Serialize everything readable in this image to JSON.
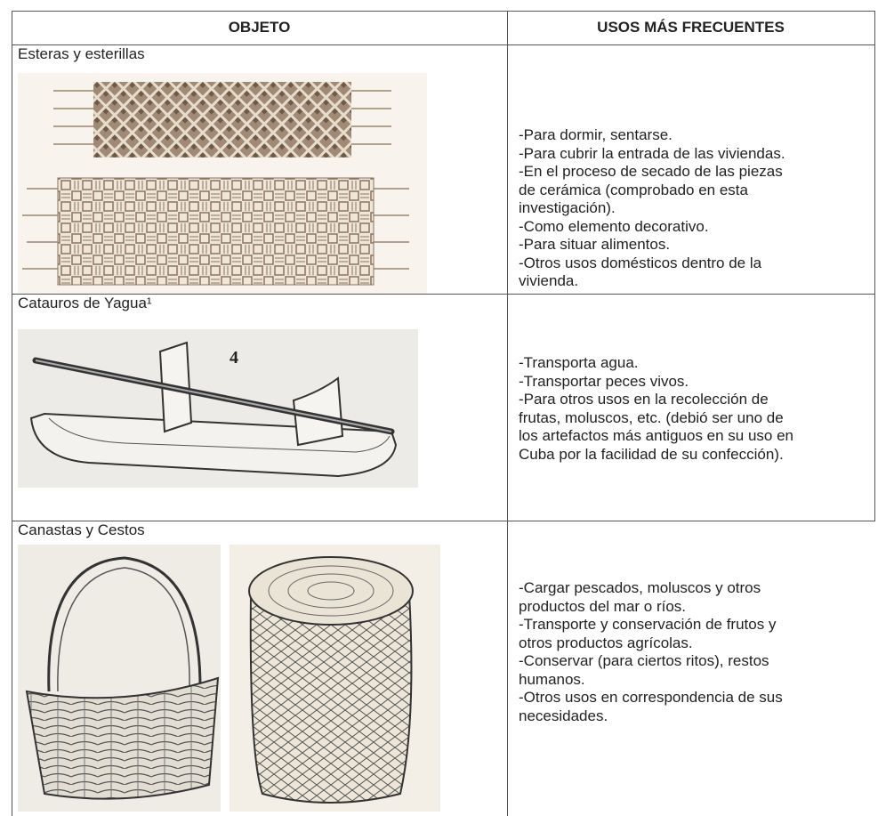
{
  "header": {
    "col1": "OBJETO",
    "col2": "USOS MÁS FRECUENTES"
  },
  "rows": [
    {
      "object": "Esteras y esterillas",
      "uses": [
        "-Para dormir, sentarse.",
        "-Para cubrir la entrada de las viviendas.",
        "-En el proceso de secado de las piezas",
        "de cerámica (comprobado en esta",
        "investigación).",
        "-Como elemento decorativo.",
        "-Para situar alimentos.",
        "-Otros usos domésticos dentro de la",
        "vivienda."
      ]
    },
    {
      "object": "Catauros de Yagua¹",
      "image_label": "4",
      "uses": [
        "-Transporta agua.",
        "-Transportar peces vivos.",
        "-Para otros usos en la recolección de",
        "frutas, moluscos, etc. (debió ser uno de",
        "los artefactos más antiguos en su uso en",
        "Cuba por la facilidad de su confección)."
      ]
    },
    {
      "object": "Canastas y Cestos",
      "uses": [
        "-Cargar pescados, moluscos y otros",
        "productos del mar o ríos.",
        "-Transporte y conservación de frutos y",
        "otros productos agrícolas.",
        "-Conservar (para ciertos ritos), restos",
        "humanos.",
        "-Otros usos en correspondencia de sus",
        "necesidades."
      ]
    }
  ]
}
